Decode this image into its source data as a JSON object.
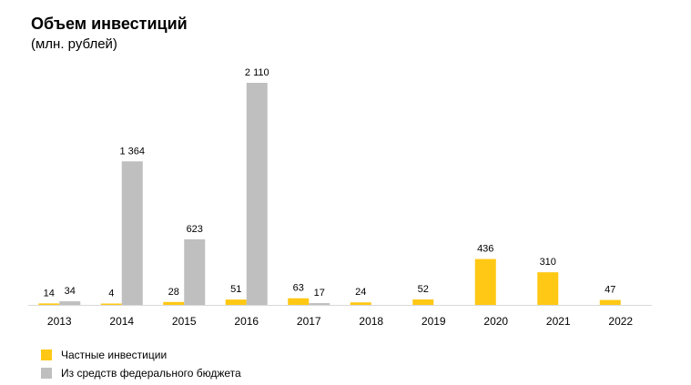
{
  "chart_data": {
    "type": "bar",
    "title": "Объем инвестиций",
    "subtitle": "(млн. рублей)",
    "categories": [
      "2013",
      "2014",
      "2015",
      "2016",
      "2017",
      "2018",
      "2019",
      "2020",
      "2021",
      "2022"
    ],
    "series": [
      {
        "name": "Частные инвестиции",
        "color": "#FFC814",
        "values": [
          14,
          4,
          28,
          51,
          63,
          24,
          52,
          436,
          310,
          47
        ],
        "labels": [
          "14",
          "4",
          "28",
          "51",
          "63",
          "24",
          "52",
          "436",
          "310",
          "47"
        ]
      },
      {
        "name": "Из средств федерального бюджета",
        "color": "#BFBFBF",
        "values": [
          34,
          1364,
          623,
          2110,
          17,
          null,
          null,
          null,
          null,
          null
        ],
        "labels": [
          "34",
          "1 364",
          "623",
          "2 110",
          "17",
          "",
          "",
          "",
          "",
          ""
        ]
      }
    ],
    "ylim": [
      0,
      2110
    ],
    "grid": false,
    "legend": "bottom-left"
  }
}
